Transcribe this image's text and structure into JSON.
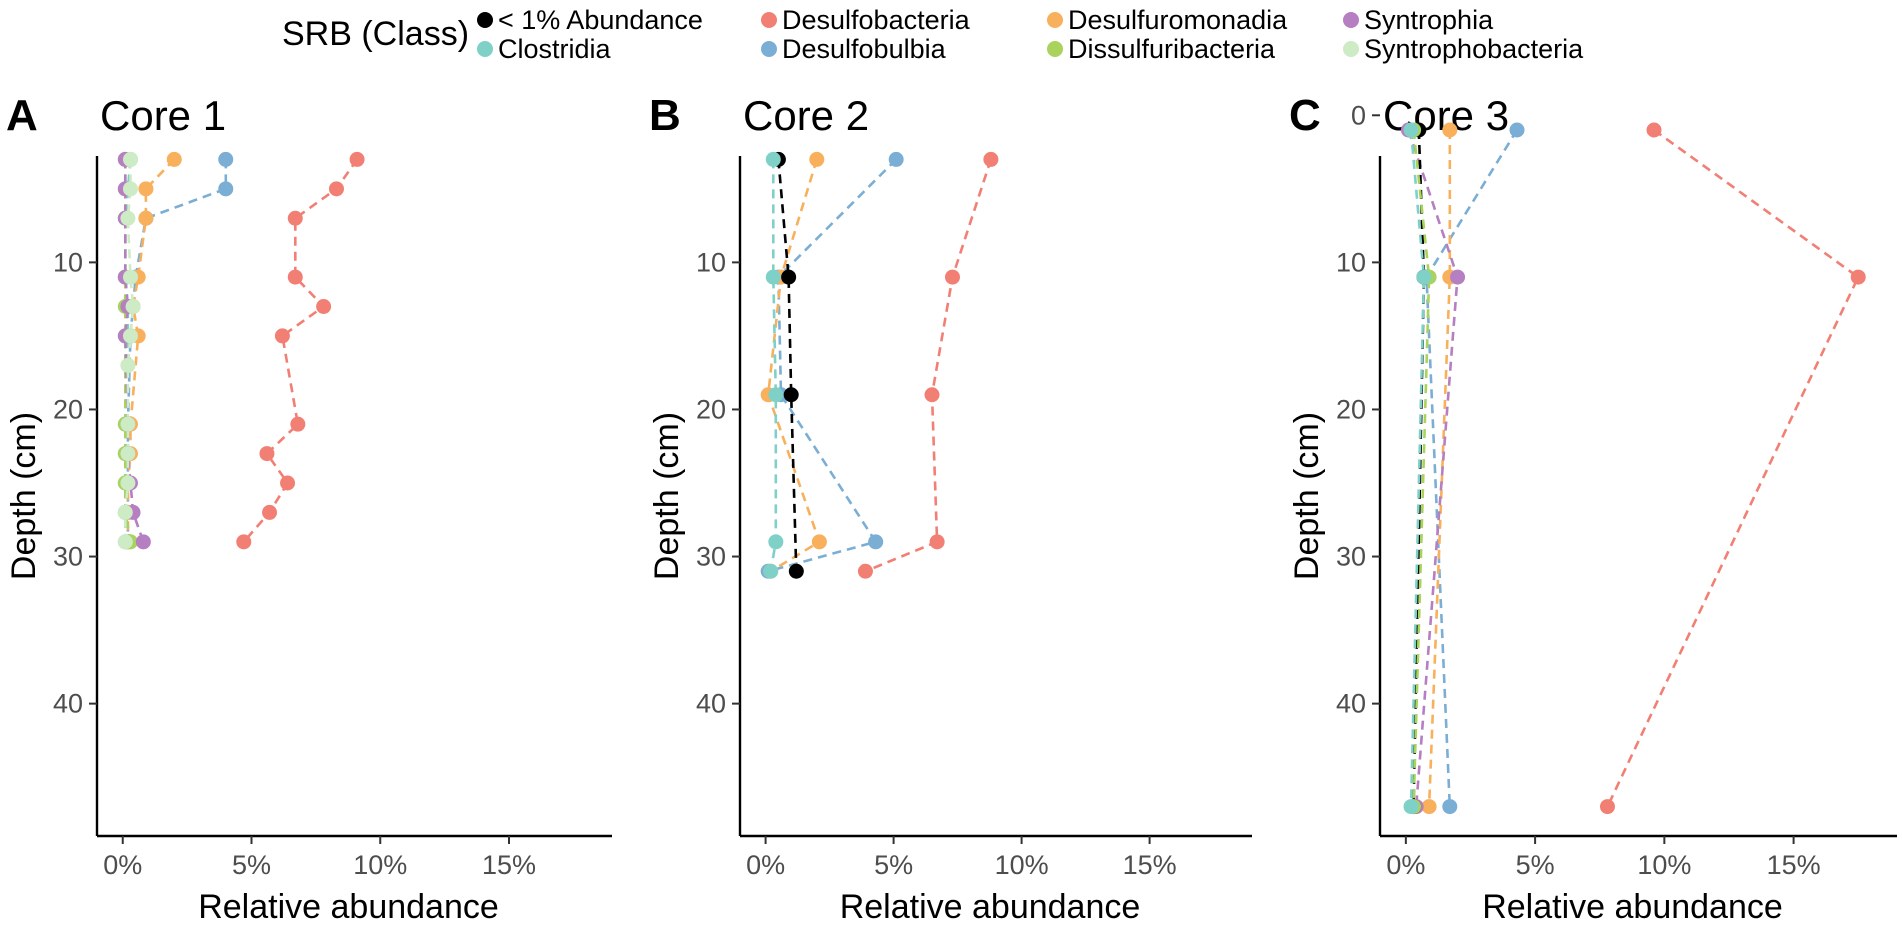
{
  "chart_data": {
    "type": "scatter",
    "legend": {
      "title": "SRB (Class)",
      "placement": "top",
      "entries": [
        {
          "name": "< 1% Abundance",
          "color": "#000000"
        },
        {
          "name": "Clostridia",
          "color": "#7fd1c7"
        },
        {
          "name": "Desulfobacteria",
          "color": "#f27f74"
        },
        {
          "name": "Desulfobulbia",
          "color": "#7baed4"
        },
        {
          "name": "Desulfuromonadia",
          "color": "#f8b05c"
        },
        {
          "name": "Dissulfuribacteria",
          "color": "#a9d35c"
        },
        {
          "name": "Syntrophia",
          "color": "#b57fc2"
        },
        {
          "name": "Syntrophobacteria",
          "color": "#cdebc5"
        }
      ]
    },
    "xlabel": "Relative abundance",
    "ylabel": "Depth (cm)",
    "xlim": [
      -1,
      19
    ],
    "ylim": [
      1,
      49
    ],
    "xticks": [
      0,
      5,
      10,
      15
    ],
    "xtick_labels": [
      "0%",
      "5%",
      "10%",
      "15%"
    ],
    "yticks": [
      10,
      20,
      30,
      40
    ],
    "panels": [
      {
        "letter": "A",
        "title": "Core 1",
        "yticks": [
          10,
          20,
          30,
          40
        ],
        "series": [
          {
            "name": "Desulfobacteria",
            "depth": [
              3,
              5,
              7,
              11,
              13,
              15,
              21,
              23,
              25,
              27,
              29
            ],
            "values": [
              9.1,
              8.3,
              6.7,
              6.7,
              7.8,
              6.2,
              6.8,
              5.6,
              6.4,
              5.7,
              4.7
            ]
          },
          {
            "name": "Desulfobulbia",
            "depth": [
              3,
              5,
              7,
              11,
              13,
              15,
              21,
              23,
              25,
              27,
              29
            ],
            "values": [
              4.0,
              4.0,
              0.9,
              0.5,
              0.4,
              0.3,
              0.2,
              0.2,
              0.2,
              0.2,
              0.2
            ]
          },
          {
            "name": "Desulfuromonadia",
            "depth": [
              3,
              5,
              7,
              11,
              13,
              15,
              21,
              23,
              25,
              27,
              29
            ],
            "values": [
              2.0,
              0.9,
              0.9,
              0.6,
              0.4,
              0.6,
              0.3,
              0.3,
              0.2,
              0.2,
              0.2
            ]
          },
          {
            "name": "Clostridia",
            "depth": [
              3,
              5,
              7,
              11,
              13,
              15,
              21,
              23,
              25,
              27,
              29
            ],
            "values": [
              0.3,
              0.2,
              0.1,
              0.1,
              0.2,
              0.2,
              0.1,
              0.1,
              0.1,
              0.1,
              0.1
            ]
          },
          {
            "name": "Dissulfuribacteria",
            "depth": [
              3,
              5,
              7,
              11,
              13,
              15,
              21,
              23,
              25,
              27,
              29
            ],
            "values": [
              0.1,
              0.1,
              0.1,
              0.1,
              0.1,
              0.1,
              0.1,
              0.1,
              0.1,
              0.1,
              0.3
            ]
          },
          {
            "name": "Syntrophia",
            "depth": [
              3,
              5,
              7,
              11,
              13,
              15,
              21,
              23,
              25,
              27,
              29
            ],
            "values": [
              0.1,
              0.1,
              0.1,
              0.1,
              0.2,
              0.1,
              0.2,
              0.2,
              0.3,
              0.4,
              0.8
            ]
          },
          {
            "name": "Syntrophobacteria",
            "depth": [
              3,
              5,
              7,
              11,
              13,
              15,
              17,
              21,
              23,
              25,
              27,
              29
            ],
            "values": [
              0.3,
              0.3,
              0.2,
              0.3,
              0.4,
              0.3,
              0.2,
              0.2,
              0.2,
              0.2,
              0.1,
              0.1
            ]
          }
        ]
      },
      {
        "letter": "B",
        "title": "Core 2",
        "yticks": [
          10,
          20,
          30,
          40
        ],
        "series": [
          {
            "name": "Desulfobacteria",
            "depth": [
              3,
              11,
              19,
              29,
              31
            ],
            "values": [
              8.8,
              7.3,
              6.5,
              6.7,
              3.9
            ]
          },
          {
            "name": "Desulfobulbia",
            "depth": [
              3,
              11,
              19,
              29,
              31
            ],
            "values": [
              5.1,
              0.5,
              0.6,
              4.3,
              0.1
            ]
          },
          {
            "name": "Desulfuromonadia",
            "depth": [
              3,
              11,
              19,
              29,
              31
            ],
            "values": [
              2.0,
              0.6,
              0.1,
              2.1,
              0.2
            ]
          },
          {
            "name": "< 1% Abundance",
            "depth": [
              3,
              11,
              19,
              31
            ],
            "values": [
              0.5,
              0.9,
              1.0,
              1.2
            ]
          },
          {
            "name": "Clostridia",
            "depth": [
              3,
              11,
              19,
              29,
              31
            ],
            "values": [
              0.3,
              0.3,
              0.4,
              0.4,
              0.2
            ]
          }
        ]
      },
      {
        "letter": "C",
        "title": "Core 3",
        "yticks": [
          0,
          10,
          20,
          30,
          40
        ],
        "series": [
          {
            "name": "Desulfobacteria",
            "depth": [
              1,
              11,
              47
            ],
            "values": [
              9.6,
              17.5,
              7.8
            ]
          },
          {
            "name": "Desulfobulbia",
            "depth": [
              1,
              11,
              47
            ],
            "values": [
              4.3,
              0.8,
              1.7
            ]
          },
          {
            "name": "Desulfuromonadia",
            "depth": [
              1,
              11,
              47
            ],
            "values": [
              1.7,
              1.7,
              0.9
            ]
          },
          {
            "name": "Syntrophia",
            "depth": [
              1,
              11,
              47
            ],
            "values": [
              0.1,
              2.0,
              0.4
            ]
          },
          {
            "name": "< 1% Abundance",
            "depth": [
              1,
              11,
              47
            ],
            "values": [
              0.5,
              0.7,
              0.3
            ]
          },
          {
            "name": "Dissulfuribacteria",
            "depth": [
              1,
              11,
              47
            ],
            "values": [
              0.3,
              0.9,
              0.3
            ]
          },
          {
            "name": "Clostridia",
            "depth": [
              1,
              11,
              47
            ],
            "values": [
              0.2,
              0.7,
              0.2
            ]
          }
        ]
      }
    ]
  }
}
